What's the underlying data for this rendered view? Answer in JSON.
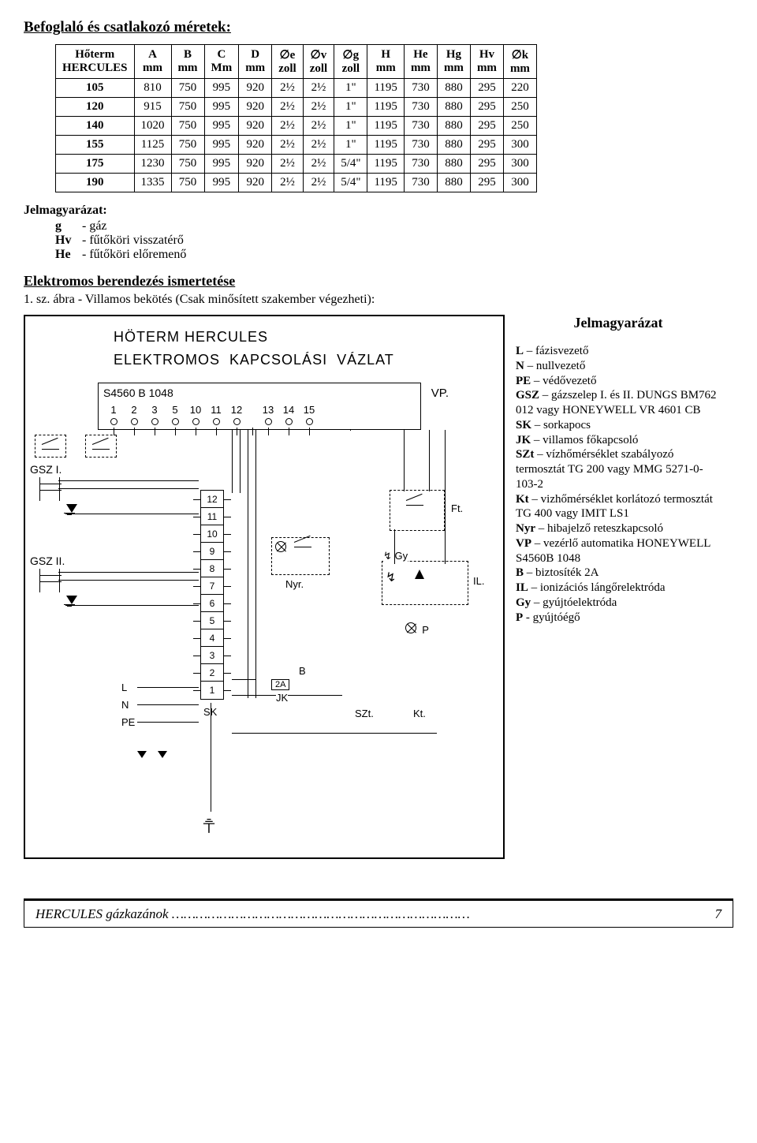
{
  "title": "Befoglaló és csatlakozó méretek:",
  "table": {
    "header_row1": [
      "Hőterm\nHERCULES",
      "A\nmm",
      "B\nmm",
      "C\nMm",
      "D\nmm",
      "∅e\nzoll",
      "∅v\nzoll",
      "∅g\nzoll",
      "H\nmm",
      "He\nmm",
      "Hg\nmm",
      "Hv\nmm",
      "∅k\nmm"
    ],
    "rows": [
      [
        "105",
        "810",
        "750",
        "995",
        "920",
        "2½",
        "2½",
        "1\"",
        "1195",
        "730",
        "880",
        "295",
        "220"
      ],
      [
        "120",
        "915",
        "750",
        "995",
        "920",
        "2½",
        "2½",
        "1\"",
        "1195",
        "730",
        "880",
        "295",
        "250"
      ],
      [
        "140",
        "1020",
        "750",
        "995",
        "920",
        "2½",
        "2½",
        "1\"",
        "1195",
        "730",
        "880",
        "295",
        "250"
      ],
      [
        "155",
        "1125",
        "750",
        "995",
        "920",
        "2½",
        "2½",
        "1\"",
        "1195",
        "730",
        "880",
        "295",
        "300"
      ],
      [
        "175",
        "1230",
        "750",
        "995",
        "920",
        "2½",
        "2½",
        "5/4\"",
        "1195",
        "730",
        "880",
        "295",
        "300"
      ],
      [
        "190",
        "1335",
        "750",
        "995",
        "920",
        "2½",
        "2½",
        "5/4\"",
        "1195",
        "730",
        "880",
        "295",
        "300"
      ]
    ]
  },
  "legend1": {
    "title": "Jelmagyarázat:",
    "items": [
      {
        "k": "g",
        "v": "- gáz"
      },
      {
        "k": "Hv",
        "v": "- fűtőköri visszatérő"
      },
      {
        "k": "He",
        "v": "- fűtőköri előremenő"
      }
    ]
  },
  "section2": "Elektromos berendezés ismertetése",
  "caption2": "1. sz. ábra - Villamos bekötés (Csak minősített szakember végezheti):",
  "diagram": {
    "title1": "HÖTERM HERCULES",
    "title2": "ELEKTROMOS  KAPCSOLÁSI  VÁZLAT",
    "vp_model": "S4560 B   1048",
    "vp_label": "VP.",
    "vp_pins": [
      "1",
      "2",
      "3",
      "5",
      "10",
      "11",
      "12",
      "",
      "13",
      "14",
      "15"
    ],
    "gsz1": "GSZ I.",
    "gsz2": "GSZ II.",
    "terminals": [
      "12",
      "11",
      "10",
      "9",
      "8",
      "7",
      "6",
      "5",
      "4",
      "3",
      "2",
      "1"
    ],
    "lnpe": [
      "L",
      "N",
      "PE"
    ],
    "nyr": "Nyr.",
    "ft": "Ft.",
    "gy": "Gy",
    "il": "IL.",
    "p": "P",
    "szt": "SZt.",
    "kt": "Kt.",
    "fuse": "2A",
    "b": "B",
    "jk": "JK",
    "sk": "SK",
    "bolt": "↯"
  },
  "legend2": {
    "title": "Jelmagyarázat",
    "items": [
      {
        "k": "L",
        "v": " – fázisvezető"
      },
      {
        "k": "N",
        "v": " – nullvezető"
      },
      {
        "k": "PE",
        "v": " – védővezető"
      },
      {
        "k": "GSZ",
        "v": " – gázszelep I. és II. DUNGS BM762 012 vagy HONEYWELL VR 4601 CB"
      },
      {
        "k": "SK",
        "v": " – sorkapocs"
      },
      {
        "k": "JK",
        "v": " – villamos főkapcsoló"
      },
      {
        "k": "SZt",
        "v": " – vízhőmérséklet szabályozó termosztát TG 200 vagy MMG 5271-0-103-2"
      },
      {
        "k": "Kt",
        "v": " – vizhőmérséklet korlátozó termosztát TG 400 vagy IMIT LS1"
      },
      {
        "k": "Nyr",
        "v": " – hibajelző reteszkapcsoló"
      },
      {
        "k": "VP",
        "v": " – vezérlő automatika HONEYWELL S4560B 1048"
      },
      {
        "k": "B",
        "v": " – biztosíték 2A"
      },
      {
        "k": "IL",
        "v": " – ionizációs lángőrelektróda"
      },
      {
        "k": "Gy",
        "v": " – gyújtóelektróda"
      },
      {
        "k": "P",
        "v": " - gyújtóégő"
      }
    ]
  },
  "footer": {
    "text": "HERCULES gázkazánok",
    "dots": "…………………………………………………………………",
    "page": "7"
  }
}
